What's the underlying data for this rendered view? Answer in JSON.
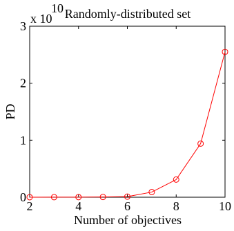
{
  "chart_data": {
    "type": "line",
    "title": "Randomly-distributed set",
    "xlabel": "Number of objectives",
    "ylabel": "PD",
    "y_multiplier": {
      "base": "x 10",
      "exponent": "10"
    },
    "xlim": [
      2,
      10
    ],
    "ylim": [
      0,
      3
    ],
    "xticks": [
      "2",
      "4",
      "6",
      "8",
      "10"
    ],
    "yticks": [
      "0",
      "1",
      "2",
      "3"
    ],
    "grid": false,
    "legend": "none",
    "series": [
      {
        "color": "#ff0000",
        "marker": "circle",
        "x": [
          2,
          3,
          4,
          5,
          6,
          7,
          8,
          9,
          10
        ],
        "y": [
          0.0005,
          0.001,
          0.002,
          0.004,
          0.01,
          0.09,
          0.31,
          0.94,
          2.55
        ]
      }
    ]
  }
}
